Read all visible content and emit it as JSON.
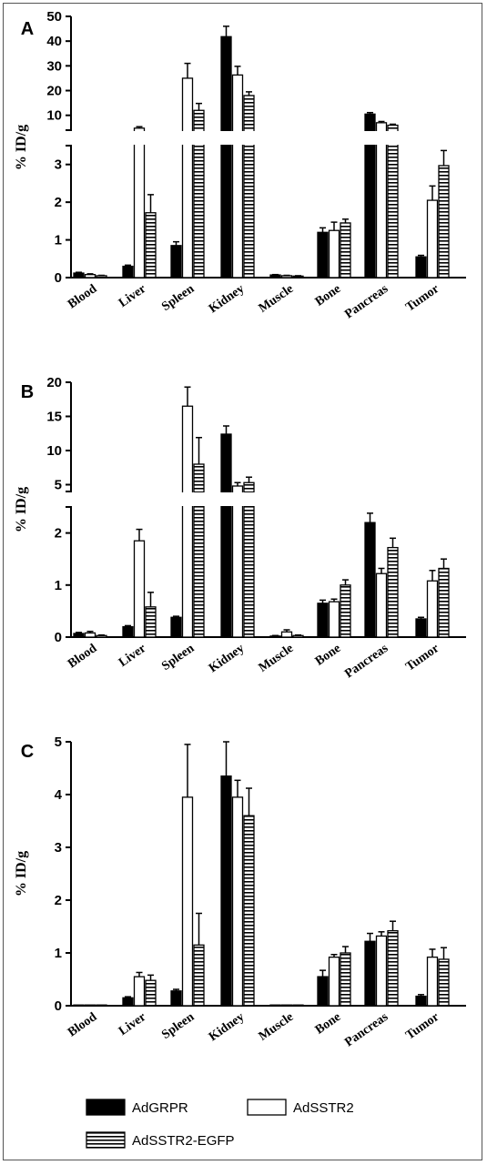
{
  "legend": [
    {
      "name": "AdGRPR",
      "fill": "#000000",
      "pattern": "solid"
    },
    {
      "name": "AdSSTR2",
      "fill": "#ffffff",
      "pattern": "open"
    },
    {
      "name": "AdSSTR2-EGFP",
      "fill": "#ffffff",
      "pattern": "horizontal-stripes"
    }
  ],
  "chart_data": [
    {
      "panel": "A",
      "type": "bar",
      "ylabel": "% ID/g",
      "categories": [
        "Blood",
        "Liver",
        "Spleen",
        "Kidney",
        "Muscle",
        "Bone",
        "Pancreas",
        "Tumor"
      ],
      "broken_axis": true,
      "lower_ylim": [
        0,
        3.5
      ],
      "lower_ticks": [
        "0",
        "1",
        "2",
        "3"
      ],
      "upper_ylim": [
        4,
        50
      ],
      "upper_ticks": [
        "10",
        "20",
        "30",
        "40",
        "50"
      ],
      "series": [
        {
          "name": "AdGRPR",
          "values": [
            0.12,
            0.3,
            0.85,
            41.8,
            0.07,
            1.2,
            10.5,
            0.55
          ],
          "errors": [
            0.02,
            0.03,
            0.1,
            4.2,
            0.01,
            0.12,
            0.6,
            0.04
          ]
        },
        {
          "name": "AdSSTR2",
          "values": [
            0.08,
            4.8,
            25.0,
            26.3,
            0.05,
            1.25,
            7.0,
            2.05
          ],
          "errors": [
            0.02,
            0.6,
            6.0,
            3.5,
            0.01,
            0.22,
            0.5,
            0.38
          ]
        },
        {
          "name": "AdSSTR2-EGFP",
          "values": [
            0.05,
            1.72,
            12.0,
            18.0,
            0.04,
            1.45,
            6.0,
            2.97
          ],
          "errors": [
            0.01,
            0.48,
            2.8,
            1.5,
            0.01,
            0.1,
            0.4,
            0.4
          ]
        }
      ]
    },
    {
      "panel": "B",
      "type": "bar",
      "ylabel": "% ID/g",
      "categories": [
        "Blood",
        "Liver",
        "Spleen",
        "Kidney",
        "Muscle",
        "Bone",
        "Pancreas",
        "Tumor"
      ],
      "broken_axis": true,
      "lower_ylim": [
        0,
        2.5
      ],
      "lower_ticks": [
        "0",
        "1",
        "2"
      ],
      "upper_ylim": [
        4,
        20
      ],
      "upper_ticks": [
        "5",
        "10",
        "15",
        "20"
      ],
      "series": [
        {
          "name": "AdGRPR",
          "values": [
            0.07,
            0.2,
            0.38,
            12.4,
            0.02,
            0.65,
            2.2,
            0.35
          ],
          "errors": [
            0.02,
            0.02,
            0.02,
            1.2,
            0.01,
            0.06,
            0.18,
            0.03
          ]
        },
        {
          "name": "AdSSTR2",
          "values": [
            0.08,
            1.85,
            16.5,
            4.8,
            0.1,
            0.68,
            1.22,
            1.08
          ],
          "errors": [
            0.03,
            0.22,
            2.8,
            0.5,
            0.04,
            0.05,
            0.1,
            0.2
          ]
        },
        {
          "name": "AdSSTR2-EGFP",
          "values": [
            0.03,
            0.58,
            8.0,
            5.3,
            0.03,
            1.0,
            1.72,
            1.32
          ],
          "errors": [
            0.01,
            0.28,
            3.9,
            0.8,
            0.01,
            0.1,
            0.18,
            0.18
          ]
        }
      ]
    },
    {
      "panel": "C",
      "type": "bar",
      "ylabel": "% ID/g",
      "categories": [
        "Blood",
        "Liver",
        "Spleen",
        "Kidney",
        "Muscle",
        "Bone",
        "Pancreas",
        "Tumor"
      ],
      "broken_axis": false,
      "ylim": [
        0,
        5
      ],
      "yticks": [
        "0",
        "1",
        "2",
        "3",
        "4",
        "5"
      ],
      "series": [
        {
          "name": "AdGRPR",
          "values": [
            0.01,
            0.15,
            0.28,
            4.35,
            0.01,
            0.55,
            1.22,
            0.18
          ],
          "errors": [
            0.0,
            0.02,
            0.03,
            0.65,
            0.0,
            0.12,
            0.15,
            0.03
          ]
        },
        {
          "name": "AdSSTR2",
          "values": [
            0.01,
            0.55,
            3.95,
            3.95,
            0.01,
            0.92,
            1.32,
            0.92
          ],
          "errors": [
            0.0,
            0.08,
            1.0,
            0.32,
            0.0,
            0.05,
            0.08,
            0.15
          ]
        },
        {
          "name": "AdSSTR2-EGFP",
          "values": [
            0.01,
            0.48,
            1.15,
            3.6,
            0.01,
            1.0,
            1.42,
            0.88
          ],
          "errors": [
            0.0,
            0.1,
            0.6,
            0.52,
            0.0,
            0.12,
            0.18,
            0.22
          ]
        }
      ]
    }
  ]
}
